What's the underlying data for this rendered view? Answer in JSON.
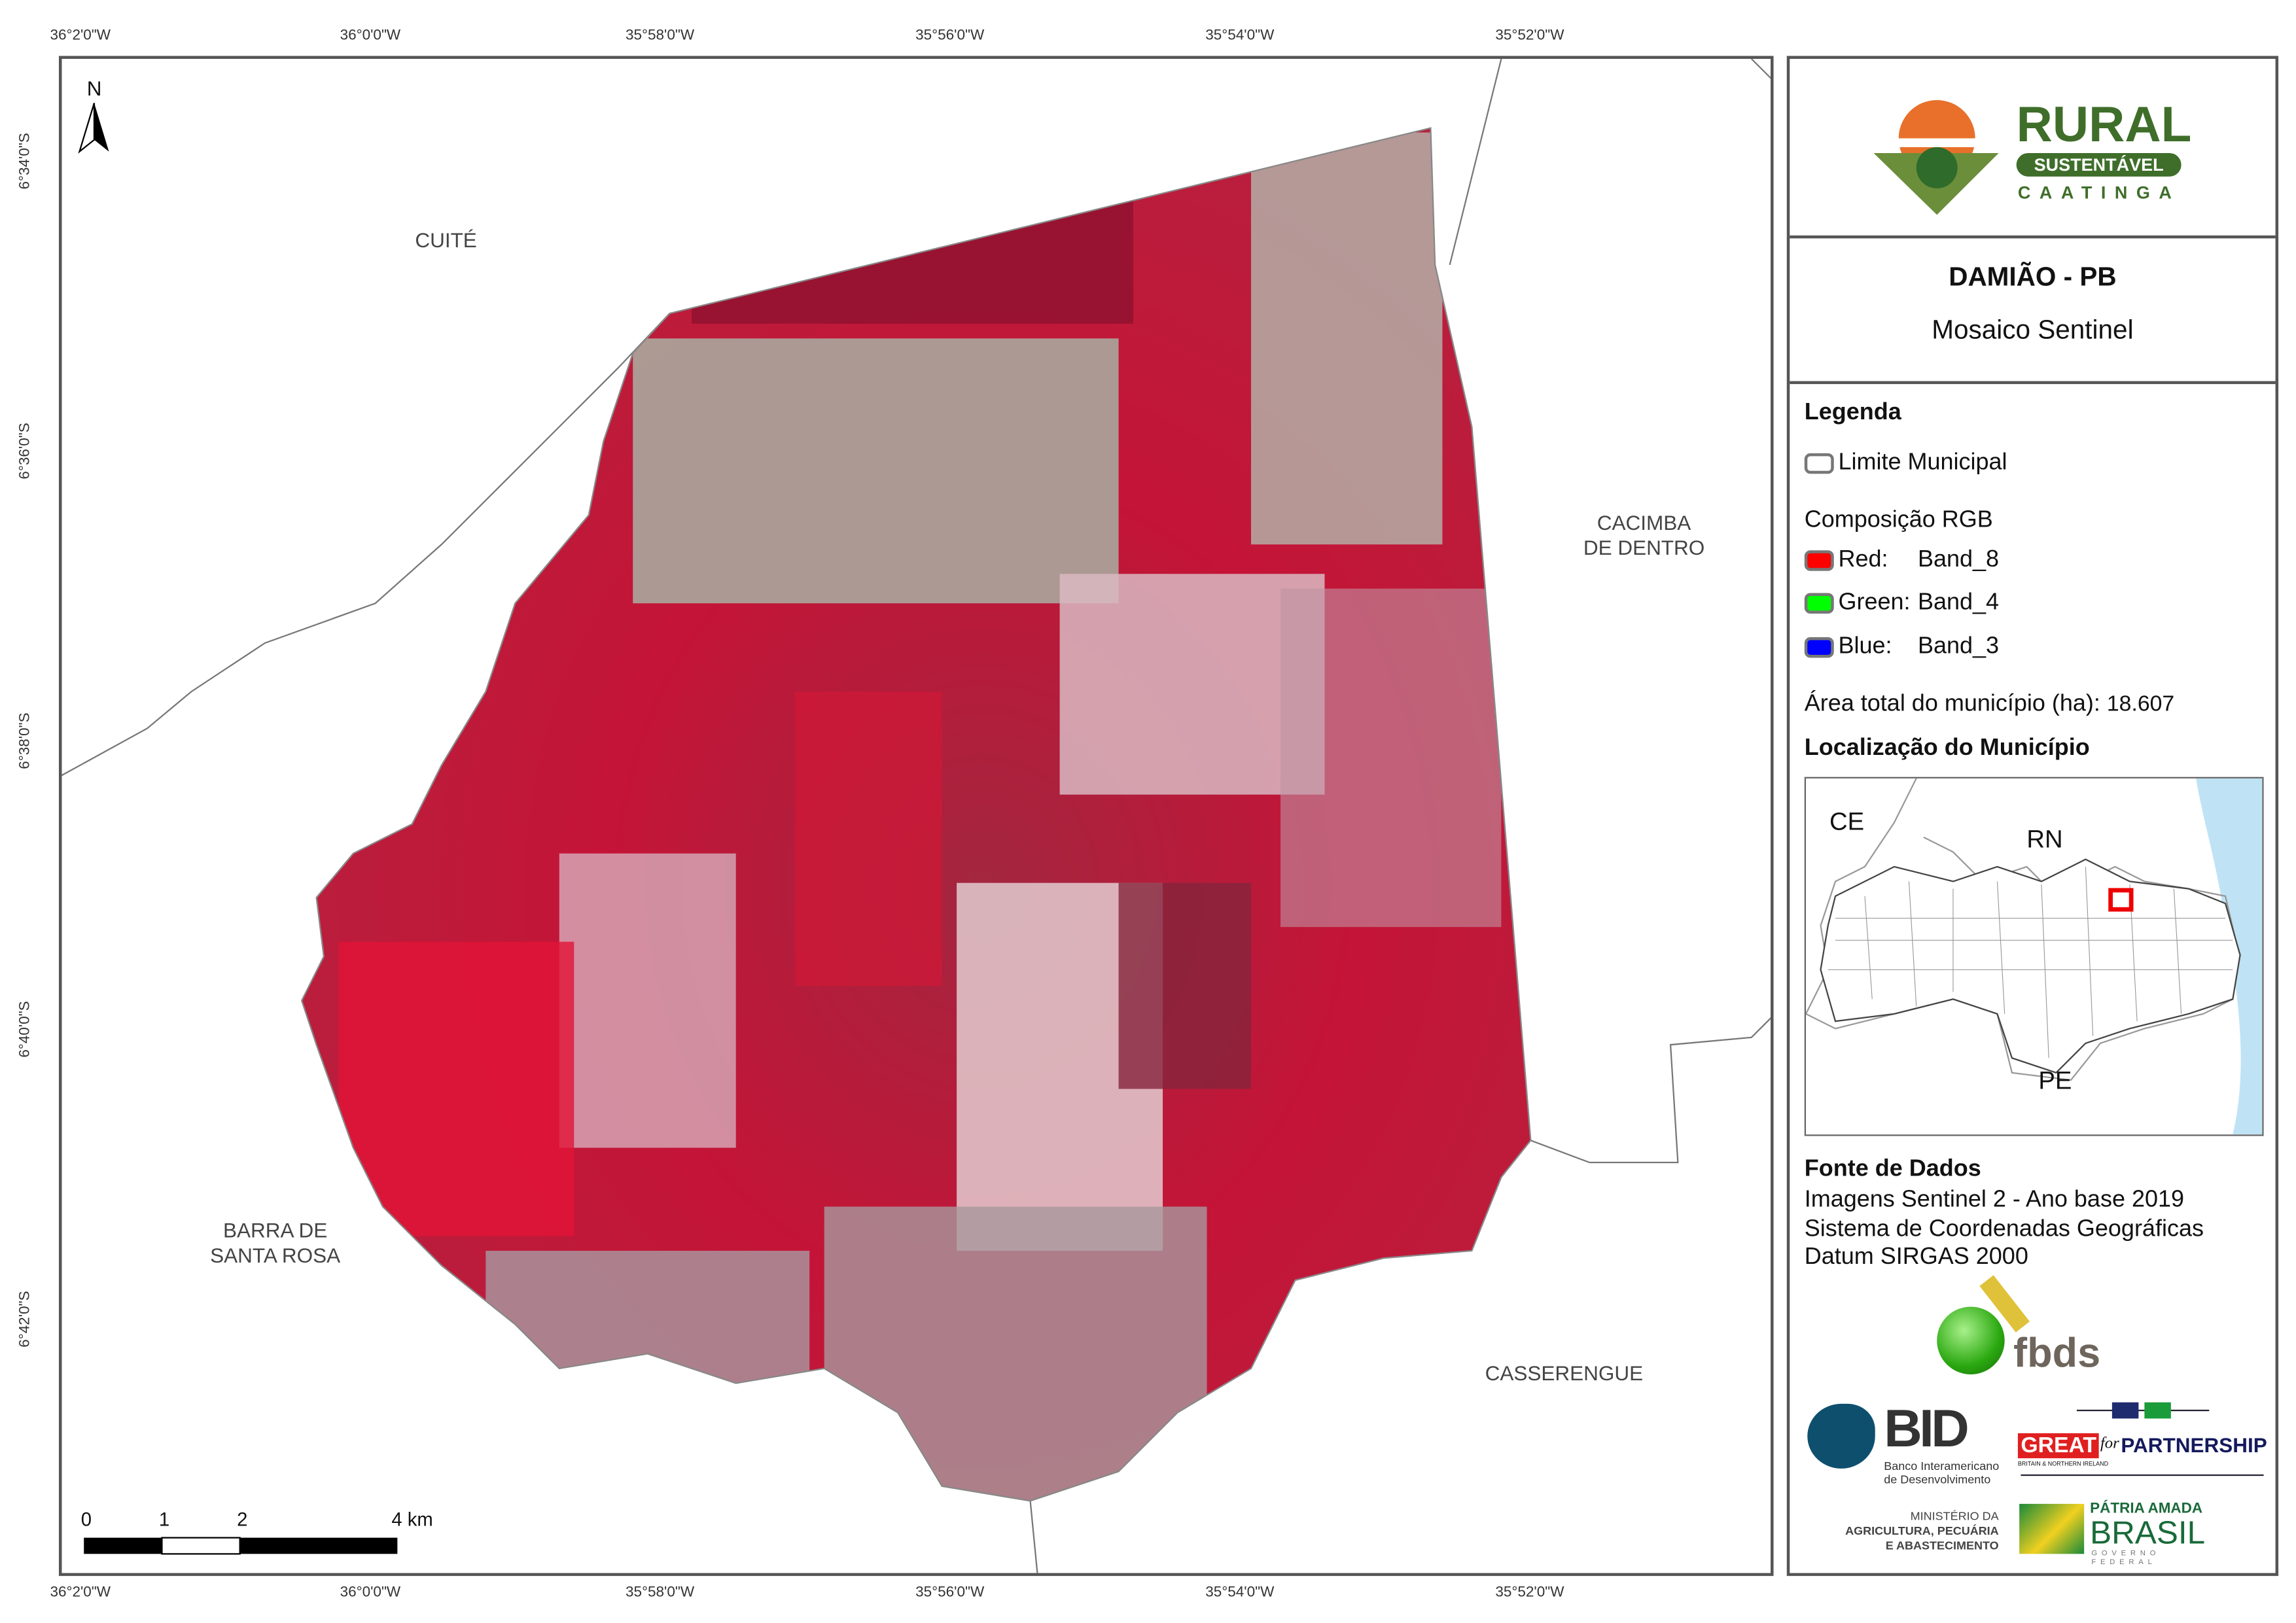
{
  "map": {
    "top_ticks": [
      "36°2'0\"W",
      "36°0'0\"W",
      "35°58'0\"W",
      "35°56'0\"W",
      "35°54'0\"W",
      "35°52'0\"W"
    ],
    "bottom_ticks": [
      "36°2'0\"W",
      "36°0'0\"W",
      "35°58'0\"W",
      "35°56'0\"W",
      "35°54'0\"W",
      "35°52'0\"W"
    ],
    "left_ticks": [
      "6°34'0\"S",
      "6°36'0\"S",
      "6°38'0\"S",
      "6°40'0\"S",
      "6°42'0\"S"
    ],
    "north_label": "N",
    "places": {
      "cuite": "CUITÉ",
      "cacimba_1": "CACIMBA",
      "cacimba_2": "DE DENTRO",
      "barra_1": "BARRA DE",
      "barra_2": "SANTA ROSA",
      "casserengue": "CASSERENGUE"
    },
    "scale_bar": {
      "labels": [
        "0",
        "1",
        "2",
        "4 km"
      ]
    }
  },
  "panel": {
    "logo": {
      "rural": "RURAL",
      "sustentavel": "SUSTENTÁVEL",
      "caatinga": "CAATINGA"
    },
    "title": "DAMIÃO - PB",
    "subtitle": "Mosaico Sentinel",
    "legend": {
      "heading": "Legenda",
      "limit_label": "Limite Municipal",
      "rgb_heading": "Composição RGB",
      "bands": [
        {
          "label": "Red:",
          "band": "Band_8",
          "color": "#ff0000"
        },
        {
          "label": "Green:",
          "band": "Band_4",
          "color": "#00ff00"
        },
        {
          "label": "Blue:",
          "band": "Band_3",
          "color": "#0000ff"
        }
      ],
      "area_label": "Área total do município (ha):",
      "area_value": "18.607"
    },
    "location": {
      "heading": "Localização do Município",
      "labels": {
        "ce": "CE",
        "rn": "RN",
        "pe": "PE"
      }
    },
    "source": {
      "heading": "Fonte de Dados",
      "lines": [
        "Imagens Sentinel 2 - Ano base 2019",
        "Sistema de Coordenadas Geográficas",
        "Datum SIRGAS 2000"
      ]
    },
    "logos": {
      "fbds": "fbds",
      "bid": "BID",
      "bid_sub_1": "Banco Interamericano",
      "bid_sub_2": "de Desenvolvimento",
      "great": "GREAT",
      "great_for": "for",
      "great_partnership": "PARTNERSHIP",
      "great_sub": "BRITAIN & NORTHERN IRELAND",
      "ministerio_1": "MINISTÉRIO DA",
      "ministerio_2": "AGRICULTURA, PECUÁRIA",
      "ministerio_3": "E ABASTECIMENTO",
      "patria": "PÁTRIA AMADA",
      "brasil": "BRASIL",
      "governo": "GOVERNO FEDERAL"
    }
  }
}
